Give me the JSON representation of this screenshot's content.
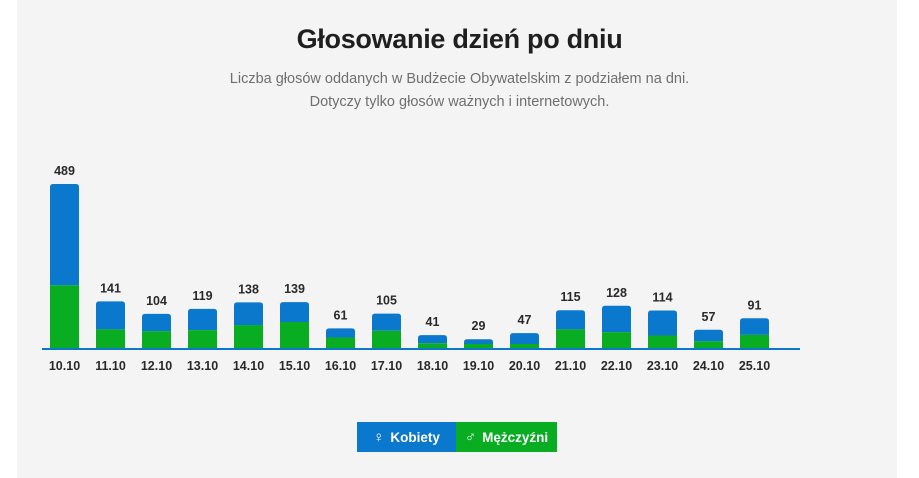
{
  "title": "Głosowanie dzień po dniu",
  "subtitle_lines": [
    "Liczba głosów oddanych w Budżecie Obywatelskim z podziałem na dni.",
    "Dotyczy tylko głosów ważnych i internetowych."
  ],
  "legend": {
    "women_icon": "♀",
    "women_label": "Kobiety",
    "men_icon": "♂",
    "men_label": "Mężczyźni"
  },
  "colors": {
    "women": "#0a78cc",
    "men": "#08ad22",
    "axis": "#0a78cc",
    "panel": "#f4f4f4"
  },
  "chart_data": {
    "type": "bar",
    "stacked": true,
    "categories": [
      "10.10",
      "11.10",
      "12.10",
      "13.10",
      "14.10",
      "15.10",
      "16.10",
      "17.10",
      "18.10",
      "19.10",
      "20.10",
      "21.10",
      "22.10",
      "23.10",
      "24.10",
      "25.10"
    ],
    "totals": [
      489,
      141,
      104,
      119,
      138,
      139,
      61,
      105,
      41,
      29,
      47,
      115,
      128,
      114,
      57,
      91
    ],
    "series": [
      {
        "name": "Mężczyźni",
        "values": [
          189,
          58,
          53,
          56,
          71,
          80,
          34,
          54,
          17,
          15,
          15,
          58,
          50,
          40,
          23,
          42
        ]
      },
      {
        "name": "Kobiety",
        "values": [
          300,
          83,
          51,
          63,
          67,
          59,
          27,
          51,
          24,
          14,
          32,
          57,
          78,
          74,
          34,
          49
        ]
      }
    ],
    "ylim": [
      0,
      489
    ]
  }
}
